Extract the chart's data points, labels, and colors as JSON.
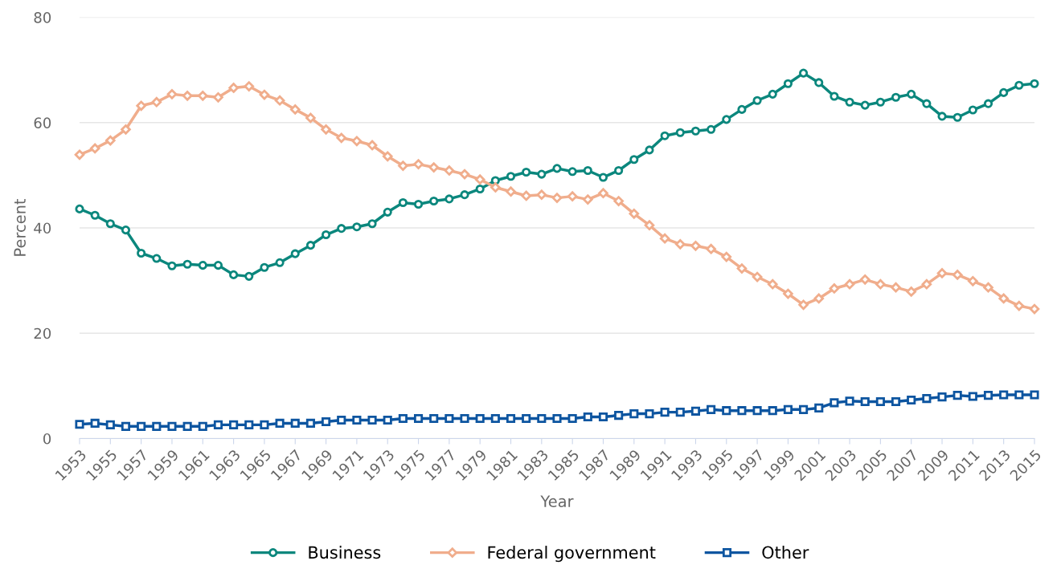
{
  "chart_data": {
    "type": "line",
    "xlabel": "Year",
    "ylabel": "Percent",
    "x": [
      1953,
      1954,
      1955,
      1956,
      1957,
      1958,
      1959,
      1960,
      1961,
      1962,
      1963,
      1964,
      1965,
      1966,
      1967,
      1968,
      1969,
      1970,
      1971,
      1972,
      1973,
      1974,
      1975,
      1976,
      1977,
      1978,
      1979,
      1980,
      1981,
      1982,
      1983,
      1984,
      1985,
      1986,
      1987,
      1988,
      1989,
      1990,
      1991,
      1992,
      1993,
      1994,
      1995,
      1996,
      1997,
      1998,
      1999,
      2000,
      2001,
      2002,
      2003,
      2004,
      2005,
      2006,
      2007,
      2008,
      2009,
      2010,
      2011,
      2012,
      2013,
      2014,
      2015
    ],
    "series": [
      {
        "name": "Business",
        "color": "#0b877d",
        "marker": "circle",
        "values": [
          43.6,
          42.4,
          40.8,
          39.6,
          35.2,
          34.2,
          32.8,
          33.1,
          32.9,
          32.9,
          31.1,
          30.8,
          32.5,
          33.4,
          35.1,
          36.7,
          38.7,
          39.9,
          40.2,
          40.8,
          43.0,
          44.8,
          44.5,
          45.1,
          45.5,
          46.3,
          47.4,
          49.0,
          49.8,
          50.6,
          50.2,
          51.3,
          50.7,
          50.9,
          49.6,
          50.9,
          53.0,
          54.8,
          57.5,
          58.1,
          58.4,
          58.7,
          60.6,
          62.5,
          64.2,
          65.4,
          67.4,
          69.4,
          67.6,
          65.0,
          63.9,
          63.3,
          63.9,
          64.8,
          65.4,
          63.6,
          61.2,
          61.0,
          62.4,
          63.6,
          65.7,
          67.1,
          67.4
        ]
      },
      {
        "name": "Federal government",
        "color": "#f0ad8c",
        "marker": "diamond",
        "values": [
          53.9,
          55.1,
          56.6,
          58.7,
          63.2,
          63.9,
          65.4,
          65.1,
          65.1,
          64.8,
          66.6,
          66.9,
          65.3,
          64.2,
          62.5,
          60.9,
          58.7,
          57.1,
          56.5,
          55.7,
          53.6,
          51.8,
          52.1,
          51.5,
          50.9,
          50.2,
          49.2,
          47.7,
          46.9,
          46.1,
          46.3,
          45.7,
          46.0,
          45.4,
          46.6,
          45.1,
          42.7,
          40.5,
          38.0,
          36.9,
          36.6,
          36.0,
          34.5,
          32.3,
          30.7,
          29.3,
          27.5,
          25.4,
          26.6,
          28.5,
          29.3,
          30.2,
          29.3,
          28.7,
          27.9,
          29.3,
          31.4,
          31.1,
          29.9,
          28.7,
          26.6,
          25.2,
          24.6
        ]
      },
      {
        "name": "Other",
        "color": "#0d55a0",
        "marker": "square",
        "values": [
          2.7,
          2.9,
          2.6,
          2.3,
          2.3,
          2.3,
          2.3,
          2.3,
          2.3,
          2.6,
          2.6,
          2.6,
          2.6,
          2.9,
          2.9,
          2.9,
          3.2,
          3.5,
          3.5,
          3.5,
          3.5,
          3.8,
          3.8,
          3.8,
          3.8,
          3.8,
          3.8,
          3.8,
          3.8,
          3.8,
          3.8,
          3.8,
          3.8,
          4.1,
          4.1,
          4.4,
          4.7,
          4.7,
          5.0,
          5.0,
          5.2,
          5.5,
          5.3,
          5.3,
          5.3,
          5.3,
          5.5,
          5.5,
          5.8,
          6.8,
          7.1,
          7.0,
          7.0,
          7.0,
          7.3,
          7.6,
          7.9,
          8.2,
          8.0,
          8.2,
          8.3,
          8.3,
          8.3
        ]
      }
    ],
    "xlim": [
      1953,
      2015
    ],
    "xticks": [
      1953,
      1955,
      1957,
      1959,
      1961,
      1963,
      1965,
      1967,
      1969,
      1971,
      1973,
      1975,
      1977,
      1979,
      1981,
      1983,
      1985,
      1987,
      1989,
      1991,
      1993,
      1995,
      1997,
      1999,
      2001,
      2003,
      2005,
      2007,
      2009,
      2011,
      2013,
      2015
    ],
    "ylim": [
      0,
      80
    ],
    "yticks": [
      0,
      20,
      40,
      60,
      80
    ],
    "grid": "y",
    "legend": "bottom",
    "line_style": "solid"
  }
}
